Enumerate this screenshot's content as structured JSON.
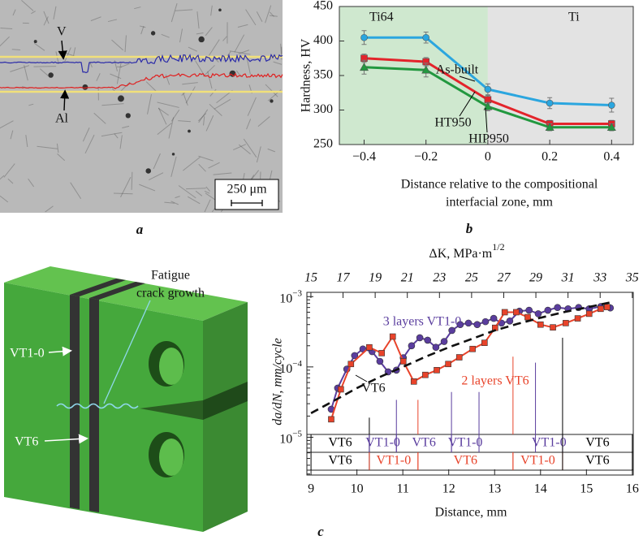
{
  "micrograph": {
    "labels": {
      "v": "V",
      "al": "Al"
    },
    "scale_bar": "250 μm",
    "caption": "a"
  },
  "specimen": {
    "crack_label": [
      "Fatigue",
      "crack growth"
    ],
    "layer_labels": [
      "VT1-0",
      "VT6"
    ]
  },
  "chart_data": [
    {
      "type": "line",
      "caption": "b",
      "y_label": "Hardness, HV",
      "x_label": [
        "Distance relative to the compositional",
        "interfacial zone, mm"
      ],
      "x": [
        -0.4,
        -0.2,
        0,
        0.2,
        0.4
      ],
      "xlim": [
        -0.48,
        0.47
      ],
      "xticks": [
        {
          "value": -0.4,
          "label": "−0.4"
        },
        {
          "value": -0.2,
          "label": "−0.2"
        },
        0,
        0.2,
        0.4
      ],
      "ylim": [
        250,
        450
      ],
      "yticks": [
        250,
        300,
        350,
        400,
        450
      ],
      "regions": [
        {
          "label": "Ti64",
          "from": -0.48,
          "to": 0,
          "color": "#cfe8cf"
        },
        {
          "label": "Ti",
          "from": 0,
          "to": 0.47,
          "color": "#e3e3e3"
        }
      ],
      "series": [
        {
          "name": "As-built",
          "color": "#2ba6df",
          "marker": "circle",
          "values": [
            405,
            405,
            330,
            310,
            307
          ],
          "errors": [
            10,
            8,
            8,
            8,
            10
          ]
        },
        {
          "name": "HT950",
          "color": "#e3242b",
          "marker": "square",
          "values": [
            375,
            370,
            315,
            280,
            280
          ],
          "errors": [
            6,
            6,
            6,
            5,
            5
          ]
        },
        {
          "name": "HIP950",
          "color": "#22983f",
          "marker": "triangle",
          "values": [
            362,
            358,
            305,
            275,
            275
          ],
          "errors": [
            10,
            10,
            6,
            5,
            5
          ]
        }
      ]
    },
    {
      "type": "line",
      "caption": "c",
      "log_y": true,
      "y_label": "da/dN, mm/cycle",
      "x_label": "Distance, mm",
      "top_axis_label": [
        "ΔK, MPa·m",
        "1/2"
      ],
      "xlim": [
        8.91,
        16.02
      ],
      "xticks": [
        9,
        10,
        11,
        12,
        13,
        14,
        15,
        16
      ],
      "x2lim": [
        14.75,
        35.06
      ],
      "x2ticks": [
        15,
        17,
        19,
        21,
        23,
        25,
        27,
        29,
        31,
        33,
        35
      ],
      "ylim": [
        2.9e-06,
        0.00115
      ],
      "yticks": [
        {
          "value": 1e-05,
          "label": "10−5"
        },
        {
          "value": 0.0001,
          "label": "10−4"
        },
        {
          "value": 0.001,
          "label": "10−3"
        }
      ],
      "series": [
        {
          "name": "3 layers VT1-0",
          "color": "#5a3d9e",
          "marker": "circle",
          "x": [
            9.44,
            9.58,
            9.78,
            9.95,
            10.13,
            10.33,
            10.5,
            10.68,
            10.86,
            11.01,
            11.19,
            11.37,
            11.54,
            11.72,
            11.9,
            12.07,
            12.25,
            12.43,
            12.62,
            12.8,
            12.98,
            13.15,
            13.33,
            13.54,
            13.75,
            13.95,
            14.16,
            14.37,
            14.6,
            14.83,
            15.06,
            15.31,
            15.52
          ],
          "values": [
            2.5e-05,
            5e-05,
            9.3e-05,
            0.000145,
            0.00018,
            0.000165,
            0.00012,
            8.5e-05,
            9e-05,
            0.000135,
            0.0002,
            0.00026,
            0.00024,
            0.00019,
            0.00023,
            0.00033,
            0.0004,
            0.00042,
            0.0004,
            0.00044,
            0.00049,
            0.00042,
            0.00045,
            0.00062,
            0.00064,
            0.00057,
            0.00064,
            0.0007,
            0.00067,
            0.0007,
            0.00067,
            0.00072,
            0.00069
          ]
        },
        {
          "name": "2 layers VT6",
          "color": "#e8432a",
          "marker": "square",
          "x": [
            9.44,
            9.65,
            9.87,
            10.27,
            10.54,
            10.78,
            11.01,
            11.24,
            11.49,
            11.74,
            11.99,
            12.23,
            12.52,
            12.78,
            13.01,
            13.22,
            13.47,
            13.72,
            14.0,
            14.27,
            14.55,
            14.81,
            15.06,
            15.31,
            15.45
          ],
          "values": [
            1.8e-05,
            4.8e-05,
            0.00011,
            0.00019,
            0.000157,
            0.00027,
            0.00012,
            6.2e-05,
            7.7e-05,
            9e-05,
            0.00011,
            0.000137,
            0.00018,
            0.00022,
            0.00036,
            0.0006,
            0.0006,
            0.00051,
            0.0004,
            0.000365,
            0.00042,
            0.00049,
            0.00057,
            0.00067,
            0.00071
          ]
        },
        {
          "name": "VT6",
          "color": "#111111",
          "dash": true,
          "x": [
            9.0,
            9.5,
            10,
            10.5,
            11,
            11.5,
            12,
            12.5,
            13,
            13.5,
            14,
            14.5,
            15,
            15.6
          ],
          "values": [
            2.2e-05,
            3.3e-05,
            5e-05,
            7.2e-05,
            0.0001,
            0.00014,
            0.00019,
            0.00025,
            0.00033,
            0.00041,
            0.0005,
            0.0006,
            0.0007,
            0.00085
          ]
        }
      ],
      "boundaries": [
        {
          "x": 10.27,
          "top": 1.9e-05,
          "color": "#000000"
        },
        {
          "x": 10.86,
          "top": 3.4e-05,
          "color": "#5a3d9e"
        },
        {
          "x": 11.33,
          "top": 3.4e-05,
          "color": "#e8432a"
        },
        {
          "x": 12.06,
          "top": 4.4e-05,
          "color": "#5a3d9e"
        },
        {
          "x": 12.66,
          "top": 4.4e-05,
          "color": "#5a3d9e"
        },
        {
          "x": 13.4,
          "top": 0.00014,
          "color": "#e8432a"
        },
        {
          "x": 13.89,
          "top": 0.000115,
          "color": "#5a3d9e"
        },
        {
          "x": 14.48,
          "top": 0.00026,
          "color": "#000000"
        }
      ],
      "layer_rows": [
        [
          {
            "label": "VT6",
            "from": 9,
            "to": 10.27,
            "color": "#000000"
          },
          {
            "label": "VT1-0",
            "from": 10.27,
            "to": 10.86,
            "color": "#5a3d9e"
          },
          {
            "label": "VT6",
            "from": 10.86,
            "to": 12.06,
            "color": "#5a3d9e"
          },
          {
            "label": "VT1-0",
            "from": 12.06,
            "to": 12.66,
            "color": "#5a3d9e"
          },
          {
            "label": "VT1-0",
            "from": 13.89,
            "to": 14.48,
            "color": "#5a3d9e"
          },
          {
            "label": "VT6",
            "from": 14.48,
            "to": 16,
            "color": "#000000"
          }
        ],
        [
          {
            "label": "VT6",
            "from": 9,
            "to": 10.27,
            "color": "#000000"
          },
          {
            "label": "VT1-0",
            "from": 10.27,
            "to": 11.33,
            "color": "#e8432a"
          },
          {
            "label": "VT6",
            "from": 11.33,
            "to": 13.4,
            "color": "#e8432a"
          },
          {
            "label": "VT1-0",
            "from": 13.4,
            "to": 14.48,
            "color": "#e8432a"
          },
          {
            "label": "VT6",
            "from": 14.48,
            "to": 16,
            "color": "#000000"
          }
        ]
      ]
    }
  ]
}
